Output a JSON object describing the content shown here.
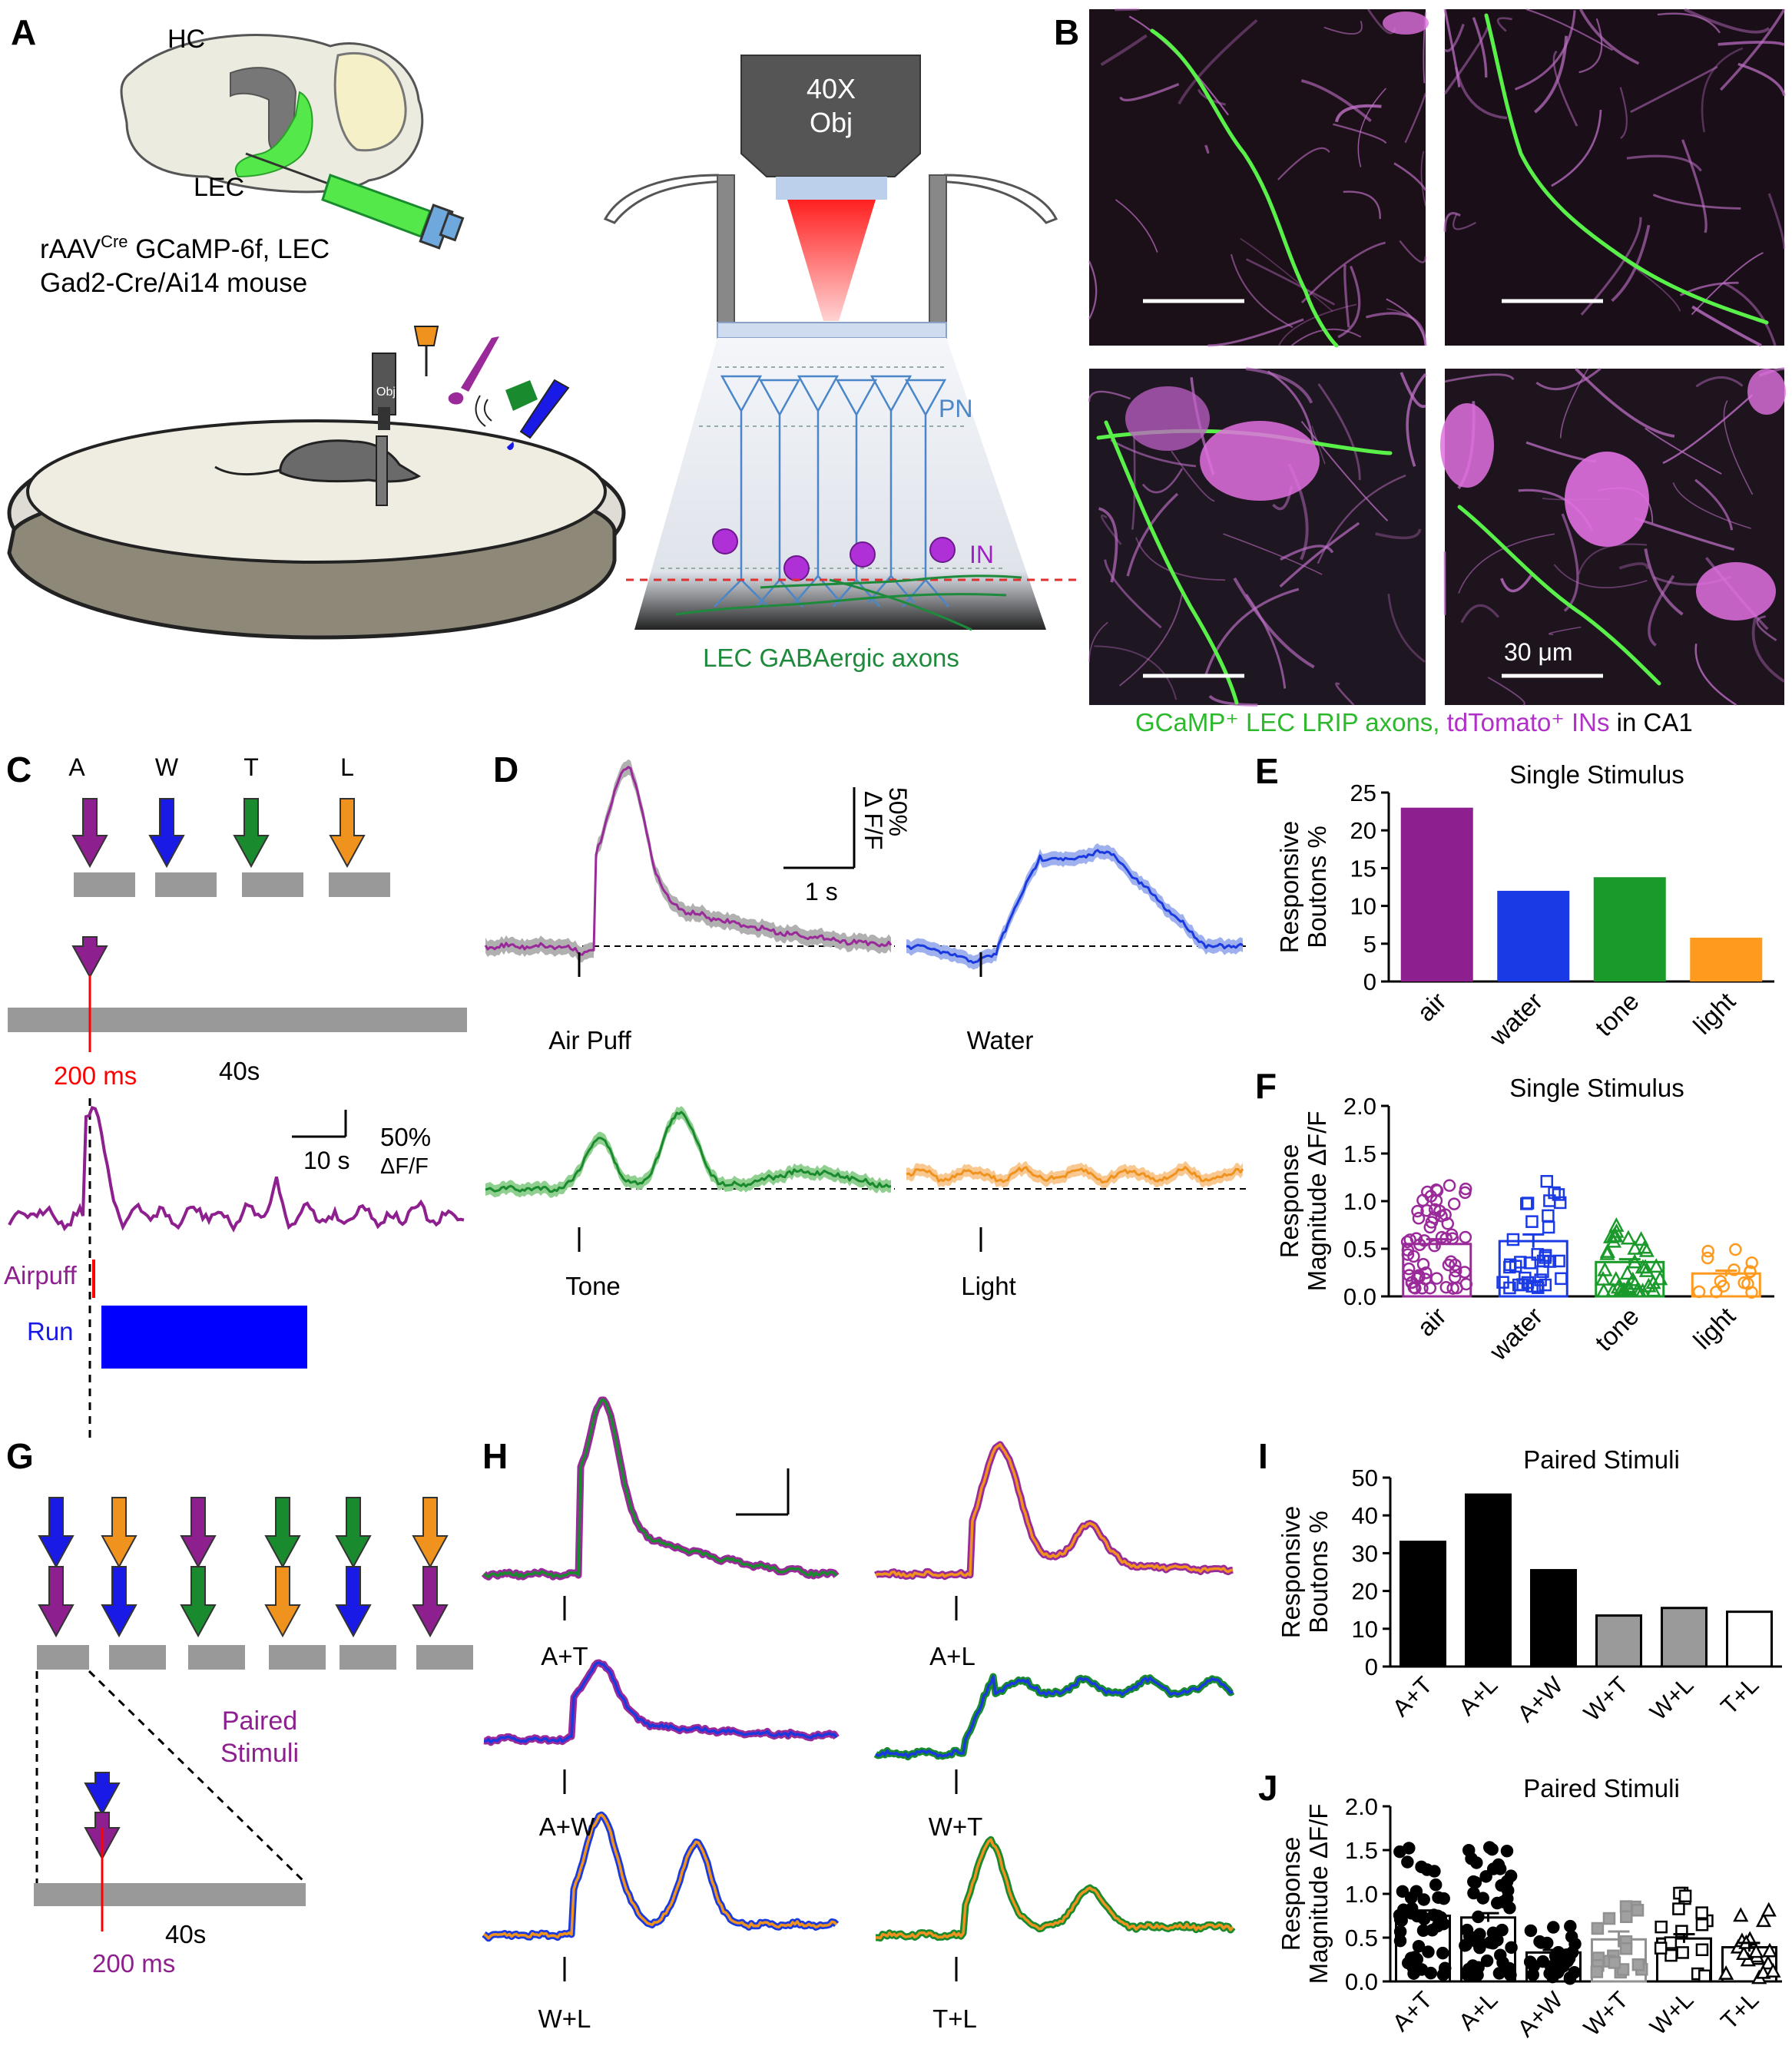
{
  "panels": {
    "A": "A",
    "B": "B",
    "C": "C",
    "D": "D",
    "E": "E",
    "F": "F",
    "G": "G",
    "H": "H",
    "I": "I",
    "J": "J"
  },
  "panelA": {
    "hc": "HC",
    "lec": "LEC",
    "virus_prefix": "rAAV",
    "virus_sup": "Cre",
    "virus_rest": " GCaMP-6f, LEC",
    "mouse_line": "Gad2-Cre/Ai14 mouse",
    "obj_small": "Obj",
    "objective_line1": "40X",
    "objective_line2": "Obj",
    "pn": "PN",
    "in": "IN",
    "axons": "LEC GABAergic axons",
    "colors": {
      "axon_green": "#1e8a3c",
      "gcamp_green": "#55e84a",
      "pn_blue": "#4a86c8",
      "in_magenta": "#a020c8",
      "laser_red": "#ff1a1a"
    }
  },
  "panelB": {
    "caption_green": "GCaMP⁺ LEC LRIP axons, ",
    "caption_magenta": "tdTomato⁺ INs",
    "caption_black": " in CA1",
    "scale_label": "30 μm"
  },
  "panelC": {
    "stim_letters": [
      "A",
      "W",
      "T",
      "L"
    ],
    "stim_colors": [
      "#8e1f8e",
      "#1a1ae6",
      "#1a8a2e",
      "#f0921e"
    ],
    "pulse": "200 ms",
    "trial": "40s",
    "scale_time": "10 s",
    "scale_pct": "50%",
    "scale_unit": "ΔF/F",
    "airpuff": "Airpuff",
    "run": "Run"
  },
  "panelD": {
    "scale_pct": "50%",
    "scale_unit": "Δ F/F",
    "scale_time": "1 s",
    "traces": [
      {
        "label": "Air Puff",
        "color": "#9a2a9a",
        "band": "#b0b0b0"
      },
      {
        "label": "Water",
        "color": "#1a3adf",
        "band": "#9fb0ee"
      },
      {
        "label": "Tone",
        "color": "#1a8a2e",
        "band": "#8fcf8f"
      },
      {
        "label": "Light",
        "color": "#f0921e",
        "band": "#f8c890"
      }
    ]
  },
  "panelH": {
    "traces": [
      {
        "label": "A+T",
        "colors": [
          "#9a2a9a",
          "#1a8a2e"
        ]
      },
      {
        "label": "A+L",
        "colors": [
          "#9a2a9a",
          "#f0921e"
        ]
      },
      {
        "label": "A+W",
        "colors": [
          "#9a2a9a",
          "#1a3adf"
        ]
      },
      {
        "label": "W+T",
        "colors": [
          "#1a8a2e",
          "#1a3adf"
        ]
      },
      {
        "label": "W+L",
        "colors": [
          "#1a3adf",
          "#f0921e"
        ]
      },
      {
        "label": "T+L",
        "colors": [
          "#1a8a2e",
          "#f0921e"
        ]
      }
    ]
  },
  "panelG": {
    "paired1": "Paired",
    "paired2": "Stimuli",
    "trial": "40s",
    "pulse": "200 ms"
  },
  "chart_data": [
    {
      "id": "E",
      "type": "bar",
      "title": "Single Stimulus",
      "ylabel": "Responsive Boutons %",
      "categories": [
        "air",
        "water",
        "tone",
        "light"
      ],
      "values": [
        23,
        12,
        13.8,
        5.8
      ],
      "colors": [
        "#8e1f8e",
        "#1a3ae6",
        "#1a9a2a",
        "#ff9a1e"
      ],
      "ylim": [
        0,
        25
      ],
      "yticks": [
        "0",
        "5",
        "10",
        "15",
        "20",
        "25"
      ]
    },
    {
      "id": "F",
      "type": "scatter",
      "title": "Single Stimulus",
      "ylabel": "Response Magnitude ΔF/F",
      "categories": [
        "air",
        "water",
        "tone",
        "light"
      ],
      "means": [
        0.55,
        0.58,
        0.36,
        0.24
      ],
      "sems": [
        0.05,
        0.07,
        0.03,
        0.03
      ],
      "colors": [
        "#9a2a9a",
        "#1a3ae6",
        "#1a9a2a",
        "#ff9a1e"
      ],
      "markers": [
        "circle",
        "square",
        "triangle",
        "circle"
      ],
      "counts": [
        60,
        35,
        40,
        14
      ],
      "ylim": [
        0,
        2
      ],
      "yticks": [
        "0.0",
        "0.5",
        "1.0",
        "1.5",
        "2.0"
      ]
    },
    {
      "id": "I",
      "type": "bar",
      "title": "Paired Stimuli",
      "ylabel": "Responsive Boutons %",
      "categories": [
        "A+T",
        "A+L",
        "A+W",
        "W+T",
        "W+L",
        "T+L"
      ],
      "values": [
        33,
        45.5,
        25.5,
        13.5,
        15.5,
        14.5
      ],
      "fills": [
        "#000000",
        "#000000",
        "#000000",
        "#9a9a9a",
        "#9a9a9a",
        "#ffffff"
      ],
      "ylim": [
        0,
        50
      ],
      "yticks": [
        "0",
        "10",
        "20",
        "30",
        "40",
        "50"
      ]
    },
    {
      "id": "J",
      "type": "scatter",
      "title": "Paired Stimuli",
      "ylabel": "Response Magnitude ΔF/F",
      "categories": [
        "A+T",
        "A+L",
        "A+W",
        "W+T",
        "W+L",
        "T+L"
      ],
      "means": [
        0.75,
        0.73,
        0.33,
        0.48,
        0.49,
        0.39
      ],
      "sems": [
        0.06,
        0.05,
        0.03,
        0.09,
        0.05,
        0.05
      ],
      "fills": [
        "#000000",
        "#000000",
        "#000000",
        "#a0a0a0",
        "#ffffff",
        "#ffffff"
      ],
      "markers": [
        "circle",
        "circle",
        "circle",
        "square",
        "square",
        "triangle"
      ],
      "counts": [
        45,
        55,
        30,
        18,
        17,
        18
      ],
      "ylim": [
        0,
        2
      ],
      "yticks": [
        "0.0",
        "0.5",
        "1.0",
        "1.5",
        "2.0"
      ]
    }
  ]
}
